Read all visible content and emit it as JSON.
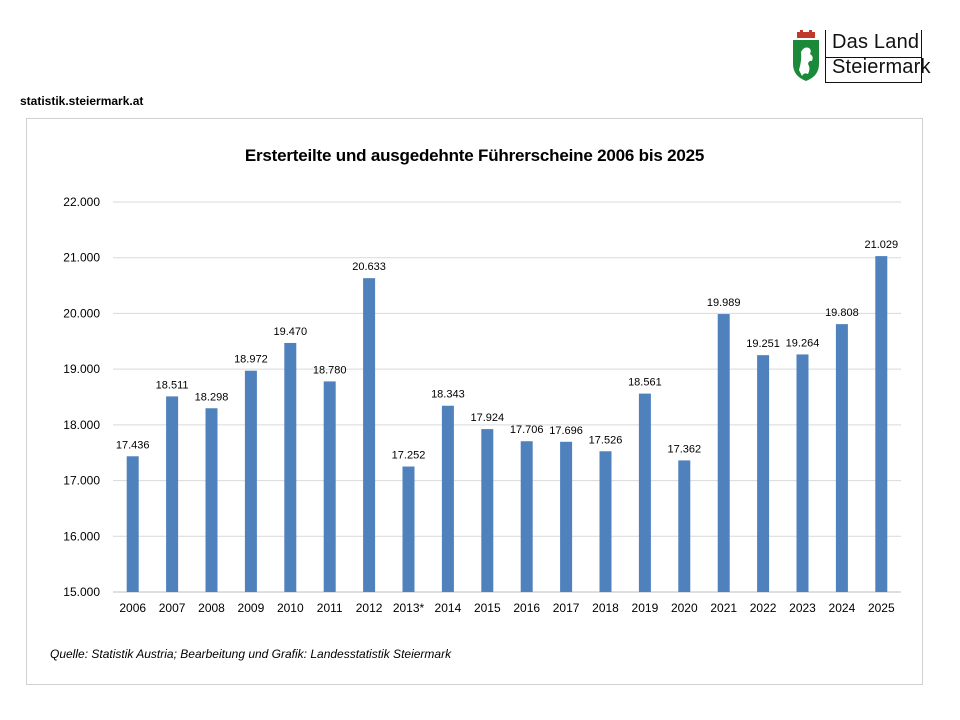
{
  "header": {
    "site_label": "statistik.steiermark.at",
    "logo_line1": "Das Land",
    "logo_line2": "Steiermark"
  },
  "colors": {
    "bar": "#4f81bd",
    "grid": "#d9d9d9",
    "shield_green": "#1a8a3a"
  },
  "chart_data": {
    "type": "bar",
    "title": "Ersterteilte und ausgedehnte Führerscheine 2006 bis 2025",
    "categories": [
      "2006",
      "2007",
      "2008",
      "2009",
      "2010",
      "2011",
      "2012",
      "2013*",
      "2014",
      "2015",
      "2016",
      "2017",
      "2018",
      "2019",
      "2020",
      "2021",
      "2022",
      "2023",
      "2024",
      "2025"
    ],
    "values": [
      17436,
      18511,
      18298,
      18972,
      19470,
      18780,
      20633,
      17252,
      18343,
      17924,
      17706,
      17696,
      17526,
      18561,
      17362,
      19989,
      19251,
      19264,
      19808,
      21029
    ],
    "value_labels": [
      "17.436",
      "18.511",
      "18.298",
      "18.972",
      "19.470",
      "18.780",
      "20.633",
      "17.252",
      "18.343",
      "17.924",
      "17.706",
      "17.696",
      "17.526",
      "18.561",
      "17.362",
      "19.989",
      "19.251",
      "19.264",
      "19.808",
      "21.029"
    ],
    "ylim": [
      15000,
      22000
    ],
    "y_ticks": [
      15000,
      16000,
      17000,
      18000,
      19000,
      20000,
      21000,
      22000
    ],
    "y_tick_labels": [
      "15.000",
      "16.000",
      "17.000",
      "18.000",
      "19.000",
      "20.000",
      "21.000",
      "22.000"
    ],
    "grid": true,
    "legend": "none"
  },
  "source_note": "Quelle:  Statistik Austria; Bearbeitung und Grafik: Landesstatistik Steiermark"
}
